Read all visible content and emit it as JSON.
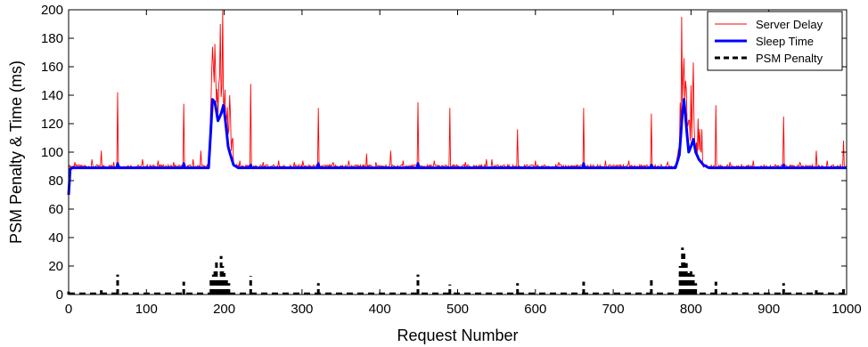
{
  "chart_data": {
    "type": "line",
    "xlabel": "Request Number",
    "ylabel": "PSM Penalty & Time (ms)",
    "xlim": [
      0,
      1000
    ],
    "ylim": [
      0,
      200
    ],
    "xticks": [
      0,
      100,
      200,
      300,
      400,
      500,
      600,
      700,
      800,
      900,
      1000
    ],
    "yticks": [
      0,
      20,
      40,
      60,
      80,
      100,
      120,
      140,
      160,
      180,
      200
    ],
    "grid": false,
    "legend_position": "top-right",
    "series": [
      {
        "name": "Server Delay",
        "color": "#ff0000",
        "style": "solid-thin",
        "baseline": 90,
        "spikes": [
          [
            8,
            93
          ],
          [
            30,
            95
          ],
          [
            42,
            101
          ],
          [
            58,
            93
          ],
          [
            63,
            142
          ],
          [
            95,
            95
          ],
          [
            115,
            94
          ],
          [
            135,
            93
          ],
          [
            148,
            134
          ],
          [
            160,
            95
          ],
          [
            170,
            101
          ],
          [
            185,
            174
          ],
          [
            188,
            176
          ],
          [
            195,
            190
          ],
          [
            198,
            200
          ],
          [
            207,
            140
          ],
          [
            220,
            94
          ],
          [
            234,
            148
          ],
          [
            250,
            93
          ],
          [
            270,
            94
          ],
          [
            290,
            93
          ],
          [
            301,
            94
          ],
          [
            321,
            131
          ],
          [
            340,
            93
          ],
          [
            360,
            94
          ],
          [
            383,
            99
          ],
          [
            395,
            93
          ],
          [
            414,
            101
          ],
          [
            430,
            94
          ],
          [
            449,
            135
          ],
          [
            470,
            94
          ],
          [
            490,
            131
          ],
          [
            510,
            93
          ],
          [
            537,
            95
          ],
          [
            544,
            95
          ],
          [
            577,
            116
          ],
          [
            600,
            94
          ],
          [
            630,
            93
          ],
          [
            662,
            131
          ],
          [
            690,
            94
          ],
          [
            720,
            94
          ],
          [
            749,
            127
          ],
          [
            770,
            93
          ],
          [
            788,
            195
          ],
          [
            800,
            147
          ],
          [
            803,
            163
          ],
          [
            832,
            133
          ],
          [
            850,
            93
          ],
          [
            880,
            94
          ],
          [
            919,
            125
          ],
          [
            940,
            93
          ],
          [
            961,
            101
          ],
          [
            975,
            94
          ],
          [
            996,
            108
          ]
        ]
      },
      {
        "name": "Sleep Time",
        "color": "#0000ff",
        "style": "solid-thick",
        "baseline": 89,
        "points": [
          [
            0,
            70
          ],
          [
            2,
            88
          ],
          [
            5,
            89
          ],
          [
            180,
            89
          ],
          [
            185,
            137
          ],
          [
            188,
            135
          ],
          [
            192,
            122
          ],
          [
            196,
            127
          ],
          [
            199,
            133
          ],
          [
            202,
            120
          ],
          [
            205,
            104
          ],
          [
            208,
            98
          ],
          [
            212,
            91
          ],
          [
            218,
            89
          ],
          [
            780,
            89
          ],
          [
            785,
            98
          ],
          [
            789,
            128
          ],
          [
            791,
            137
          ],
          [
            794,
            118
          ],
          [
            797,
            100
          ],
          [
            800,
            104
          ],
          [
            803,
            109
          ],
          [
            806,
            100
          ],
          [
            810,
            95
          ],
          [
            816,
            91
          ],
          [
            823,
            89
          ],
          [
            1000,
            89
          ]
        ],
        "blips": [
          [
            63,
            92
          ],
          [
            148,
            92
          ],
          [
            234,
            91
          ],
          [
            321,
            92
          ],
          [
            449,
            92
          ],
          [
            662,
            92
          ],
          [
            749,
            91
          ],
          [
            919,
            91
          ]
        ]
      },
      {
        "name": "PSM Penalty",
        "color": "#000000",
        "style": "dashed",
        "base": 0,
        "points": [
          [
            0,
            2
          ],
          [
            42,
            3
          ],
          [
            63,
            14
          ],
          [
            148,
            9
          ],
          [
            183,
            10
          ],
          [
            186,
            14
          ],
          [
            188,
            18
          ],
          [
            190,
            24
          ],
          [
            193,
            12
          ],
          [
            196,
            27
          ],
          [
            198,
            20
          ],
          [
            200,
            15
          ],
          [
            203,
            12
          ],
          [
            206,
            8
          ],
          [
            234,
            13
          ],
          [
            321,
            8
          ],
          [
            449,
            14
          ],
          [
            490,
            7
          ],
          [
            577,
            8
          ],
          [
            662,
            9
          ],
          [
            749,
            10
          ],
          [
            786,
            20
          ],
          [
            789,
            33
          ],
          [
            791,
            30
          ],
          [
            794,
            22
          ],
          [
            797,
            15
          ],
          [
            800,
            17
          ],
          [
            803,
            14
          ],
          [
            806,
            8
          ],
          [
            832,
            9
          ],
          [
            919,
            8
          ],
          [
            961,
            3
          ],
          [
            996,
            4
          ]
        ]
      }
    ]
  }
}
